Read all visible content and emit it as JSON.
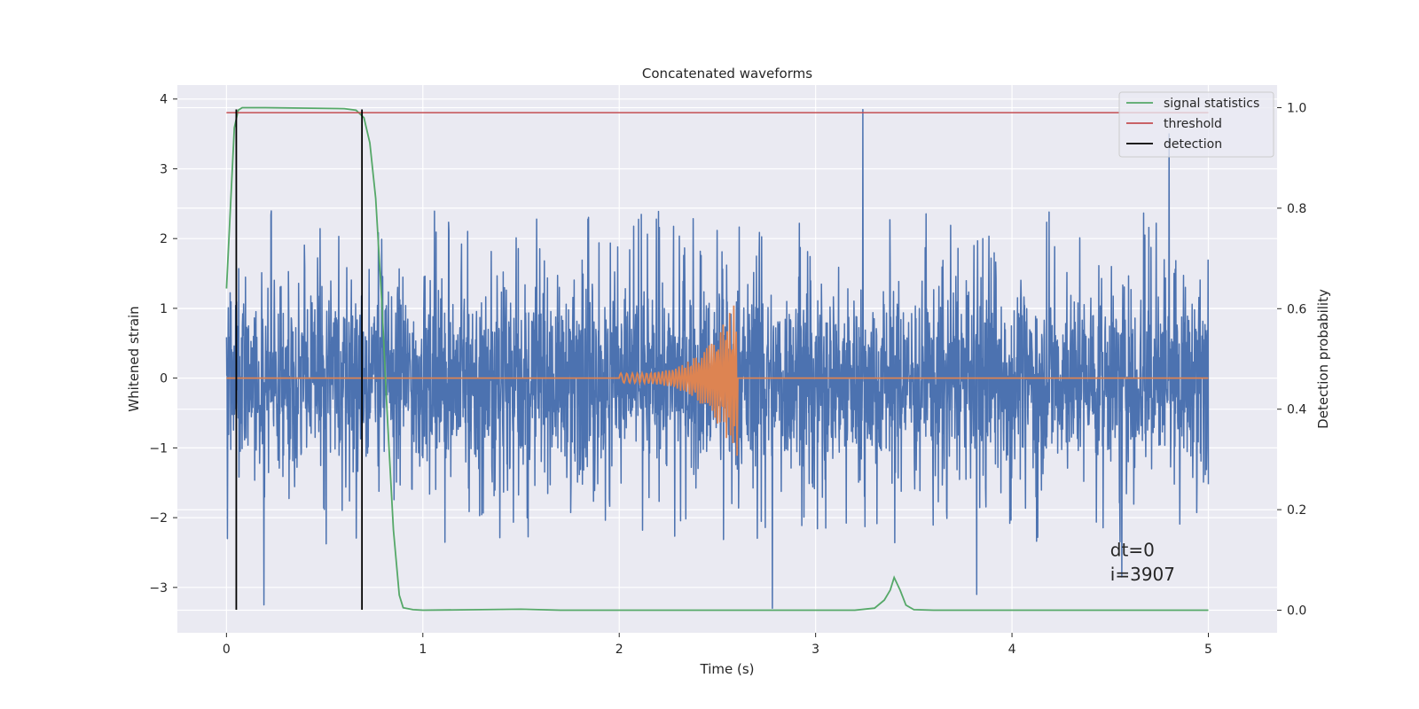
{
  "chart_data": {
    "type": "line",
    "title": "Concatenated waveforms",
    "xlabel": "Time (s)",
    "ylabel": "Whitened strain",
    "y2label": "Detection probability",
    "xlim": [
      -0.25,
      5.35
    ],
    "ylim": [
      -3.65,
      4.2
    ],
    "y2lim": [
      -0.045,
      1.045
    ],
    "xticks": [
      0,
      1,
      2,
      3,
      4,
      5
    ],
    "yticks": [
      -3,
      -2,
      -1,
      0,
      1,
      2,
      3,
      4
    ],
    "y2ticks": [
      0.0,
      0.2,
      0.4,
      0.6,
      0.8,
      1.0
    ],
    "tick_labels": {
      "x": [
        "0",
        "1",
        "2",
        "3",
        "4",
        "5"
      ],
      "y": [
        "−3",
        "−2",
        "−1",
        "0",
        "1",
        "2",
        "3",
        "4"
      ],
      "y2": [
        "0.0",
        "0.2",
        "0.4",
        "0.6",
        "0.8",
        "1.0"
      ]
    },
    "grid": true,
    "legend_position": "top-right",
    "colors": {
      "strain": "#4c72b0",
      "template": "#dd8452",
      "signal_statistics": "#55a868",
      "threshold": "#c44e52",
      "detection": "#000000",
      "background": "#eaeaf2",
      "grid": "#ffffff"
    },
    "series": [
      {
        "name": "",
        "axis": "left",
        "kind": "noise",
        "x_range": [
          0,
          5
        ],
        "typical_peak_range": [
          -2.1,
          2.4
        ],
        "min": -3.3,
        "max": 3.85,
        "notable_spikes": [
          {
            "x": 0.19,
            "y": -3.25
          },
          {
            "x": 3.24,
            "y": 3.85
          },
          {
            "x": 2.78,
            "y": -3.3
          },
          {
            "x": 4.8,
            "y": 3.5
          },
          {
            "x": 3.82,
            "y": -3.1
          },
          {
            "x": 4.56,
            "y": -2.85
          }
        ]
      },
      {
        "name": "",
        "axis": "left",
        "kind": "chirp",
        "x_range": [
          0,
          5
        ],
        "chirp_start": 2.0,
        "chirp_end": 2.6,
        "peak_amplitude": 1.1
      },
      {
        "name": "signal statistics",
        "axis": "right",
        "x": [
          0,
          0.02,
          0.04,
          0.06,
          0.08,
          0.1,
          0.2,
          0.6,
          0.66,
          0.7,
          0.73,
          0.76,
          0.79,
          0.82,
          0.85,
          0.88,
          0.9,
          0.95,
          1.0,
          1.3,
          1.5,
          1.7,
          2.0,
          3.0,
          3.2,
          3.3,
          3.35,
          3.38,
          3.4,
          3.43,
          3.46,
          3.5,
          3.6,
          4.0,
          4.5,
          5.0
        ],
        "y": [
          0.64,
          0.8,
          0.96,
          0.995,
          1.0,
          1.0,
          1.0,
          0.998,
          0.995,
          0.98,
          0.93,
          0.82,
          0.62,
          0.38,
          0.16,
          0.03,
          0.005,
          0.001,
          0.0,
          0.001,
          0.002,
          0.0,
          0.0,
          0.0,
          0.0,
          0.004,
          0.02,
          0.04,
          0.065,
          0.04,
          0.01,
          0.001,
          0.0,
          0.0,
          0.0,
          0.0
        ]
      },
      {
        "name": "threshold",
        "axis": "right",
        "x": [
          0,
          5
        ],
        "y": [
          0.99,
          0.99
        ]
      },
      {
        "name": "detection",
        "axis": "left",
        "vertical_lines": [
          0.05,
          0.69
        ],
        "y_range": [
          -3.32,
          3.85
        ]
      }
    ],
    "annotations": [
      {
        "text": "dt=0",
        "x": 4.5,
        "y": -2.55
      },
      {
        "text": "i=3907",
        "x": 4.5,
        "y": -2.9
      }
    ]
  }
}
